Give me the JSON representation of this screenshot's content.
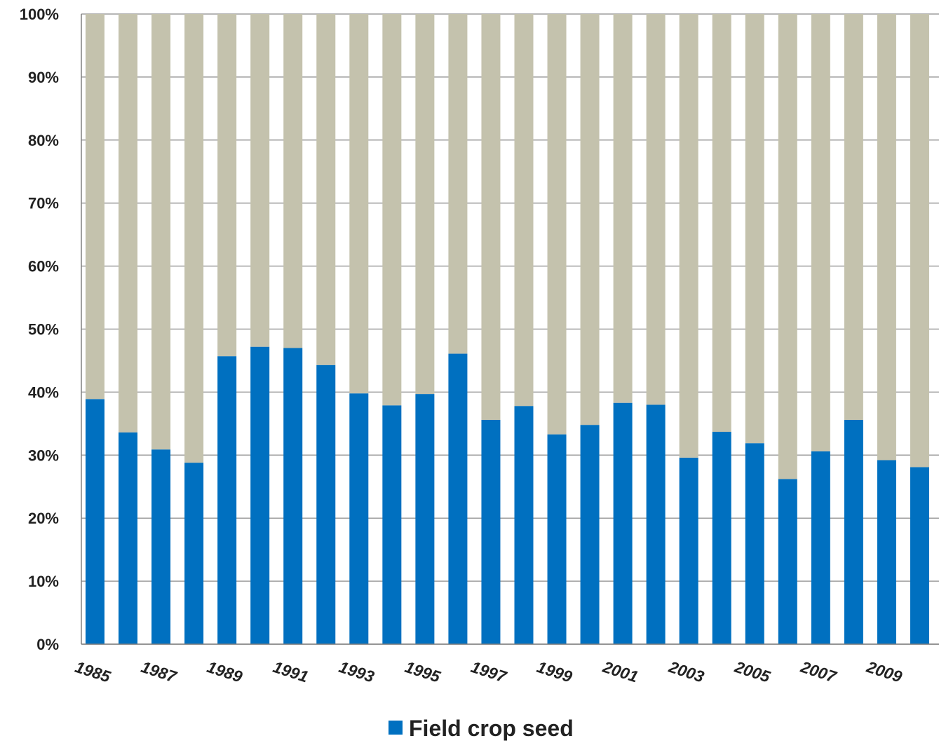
{
  "chart_data": {
    "type": "bar",
    "stacked": true,
    "percent_stacked": true,
    "categories": [
      "1985",
      "1986",
      "1987",
      "1988",
      "1989",
      "1990",
      "1991",
      "1992",
      "1993",
      "1994",
      "1995",
      "1996",
      "1997",
      "1998",
      "1999",
      "2000",
      "2001",
      "2002",
      "2003",
      "2004",
      "2005",
      "2006",
      "2007",
      "2008",
      "2009",
      "2010"
    ],
    "x_tick_labels": [
      "1985",
      "1987",
      "1989",
      "1991",
      "1993",
      "1995",
      "1997",
      "1999",
      "2001",
      "2003",
      "2005",
      "2007",
      "2009"
    ],
    "series": [
      {
        "name": "Field crop seed",
        "color": "#0070C0",
        "values": [
          38.9,
          33.6,
          30.9,
          28.8,
          45.7,
          47.2,
          47.0,
          44.3,
          39.8,
          37.9,
          39.7,
          46.1,
          35.6,
          37.8,
          33.3,
          34.8,
          38.3,
          38.0,
          29.6,
          33.7,
          31.9,
          26.2,
          30.6,
          35.6,
          29.2,
          28.1
        ]
      },
      {
        "color": "#C4C2AD",
        "values": [
          61.1,
          66.4,
          69.1,
          71.2,
          54.3,
          52.8,
          53.0,
          55.7,
          60.2,
          62.1,
          60.3,
          53.9,
          64.4,
          62.2,
          66.7,
          65.2,
          61.7,
          62.0,
          70.4,
          66.3,
          68.1,
          73.8,
          69.4,
          64.4,
          70.8,
          71.9
        ]
      }
    ],
    "y_tick_labels": [
      "0%",
      "10%",
      "20%",
      "30%",
      "40%",
      "50%",
      "60%",
      "70%",
      "80%",
      "90%",
      "100%"
    ],
    "ylim": [
      0,
      100
    ],
    "grid": true,
    "legend": {
      "position": "bottom-center",
      "entries": [
        "Field crop seed"
      ]
    },
    "colors": {
      "gridline": "#9E9E9E",
      "axis": "#808080",
      "text": "#222222"
    }
  }
}
